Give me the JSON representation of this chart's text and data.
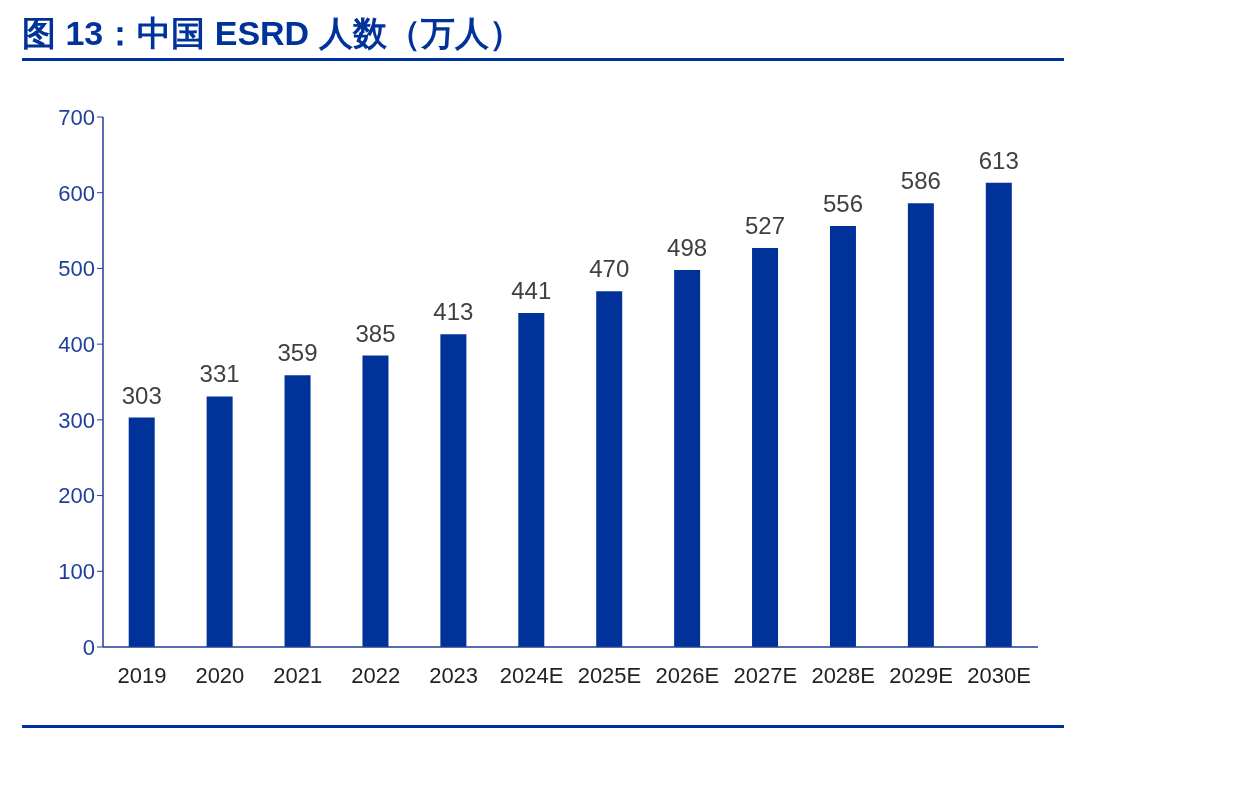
{
  "chart_data": {
    "type": "bar",
    "title": "图 13：中国 ESRD 人数（万人）",
    "categories": [
      "2019",
      "2020",
      "2021",
      "2022",
      "2023",
      "2024E",
      "2025E",
      "2026E",
      "2027E",
      "2028E",
      "2029E",
      "2030E"
    ],
    "values": [
      303,
      331,
      359,
      385,
      413,
      441,
      470,
      498,
      527,
      556,
      586,
      613
    ],
    "color": "#00329a",
    "ylim": [
      0,
      700
    ],
    "yticks": [
      0,
      100,
      200,
      300,
      400,
      500,
      600,
      700
    ],
    "data_labels": true
  }
}
